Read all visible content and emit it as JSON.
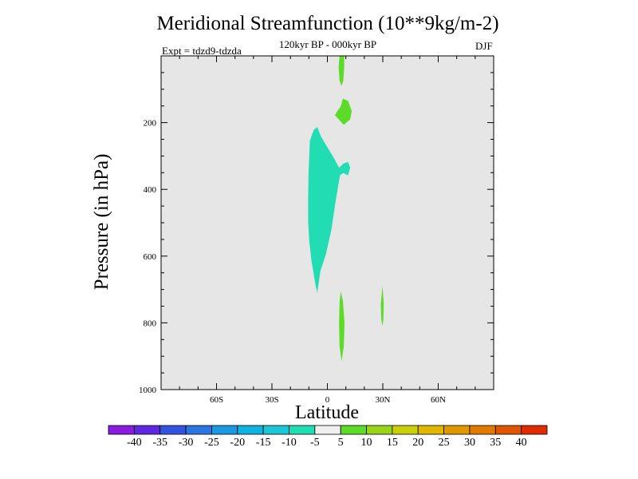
{
  "chart_data": {
    "type": "contour",
    "title": "Meridional Streamfunction (10**9kg/m-2)",
    "subtitle": "120kyr BP - 000kyr BP",
    "left_note": "Expt = tdzd9-tdzda",
    "right_note": "DJF",
    "xlabel": "Latitude",
    "ylabel": "Pressure (in hPa)",
    "xlim": [
      -90,
      90
    ],
    "ylim": [
      0,
      1000
    ],
    "x_ticks": [
      {
        "value": -60,
        "label": "60S"
      },
      {
        "value": -30,
        "label": "30S"
      },
      {
        "value": 0,
        "label": "0"
      },
      {
        "value": 30,
        "label": "30N"
      },
      {
        "value": 60,
        "label": "60N"
      }
    ],
    "y_ticks": [
      {
        "value": 200,
        "label": "200"
      },
      {
        "value": 400,
        "label": "400"
      },
      {
        "value": 600,
        "label": "600"
      },
      {
        "value": 800,
        "label": "800"
      },
      {
        "value": 1000,
        "label": "1000"
      }
    ],
    "background_color": "#e6e6e6",
    "colorbar": {
      "colors": [
        "#8a1ce0",
        "#5e28e0",
        "#3454e0",
        "#2c74e0",
        "#1c98e0",
        "#12b2e0",
        "#1cc6d6",
        "#22dcb4",
        "#f0f0f0",
        "#5cdc28",
        "#98d41a",
        "#c8d00a",
        "#e0b800",
        "#e09800",
        "#e07a00",
        "#e05600",
        "#e02a00"
      ],
      "labels": [
        "-40",
        "-35",
        "-30",
        "-25",
        "-20",
        "-15",
        "-10",
        "-5",
        "5",
        "10",
        "15",
        "20",
        "25",
        "30",
        "35",
        "40"
      ]
    },
    "regions": [
      {
        "name": "negative-cell-tropics",
        "range": "-10 to -5",
        "color": "#22dcb4",
        "points": [
          [
            -5.5,
            213
          ],
          [
            -3.4,
            242
          ],
          [
            3.4,
            305
          ],
          [
            6.3,
            335
          ],
          [
            8.9,
            322
          ],
          [
            11.2,
            318
          ],
          [
            12.4,
            335
          ],
          [
            11.2,
            358
          ],
          [
            8.6,
            351
          ],
          [
            6.8,
            358
          ],
          [
            4.6,
            430
          ],
          [
            2.2,
            520
          ],
          [
            -0.8,
            595
          ],
          [
            -3.8,
            645
          ],
          [
            -5.5,
            710
          ],
          [
            -6.3,
            690
          ],
          [
            -8.6,
            615
          ],
          [
            -9.8,
            555
          ],
          [
            -10.4,
            500
          ],
          [
            -10.4,
            430
          ],
          [
            -10.2,
            350
          ],
          [
            -9.5,
            255
          ],
          [
            -7.4,
            222
          ]
        ]
      },
      {
        "name": "positive-cell-top",
        "range": "5 to 10",
        "color": "#5cdc28",
        "points": [
          [
            6.6,
            0
          ],
          [
            9.1,
            0
          ],
          [
            9.1,
            35
          ],
          [
            8.6,
            75
          ],
          [
            7.7,
            90
          ],
          [
            6.6,
            75
          ],
          [
            6.1,
            35
          ]
        ]
      },
      {
        "name": "positive-cell-upper",
        "range": "5 to 10",
        "color": "#5cdc28",
        "points": [
          [
            8.4,
            128
          ],
          [
            11.2,
            135
          ],
          [
            13.2,
            165
          ],
          [
            12.4,
            190
          ],
          [
            8.9,
            207
          ],
          [
            7.2,
            197
          ],
          [
            4.1,
            178
          ],
          [
            5.4,
            165
          ],
          [
            7.2,
            152
          ]
        ]
      },
      {
        "name": "positive-cell-lower",
        "range": "5 to 10",
        "color": "#5cdc28",
        "points": [
          [
            7.2,
            705
          ],
          [
            8.4,
            735
          ],
          [
            9.3,
            800
          ],
          [
            8.9,
            870
          ],
          [
            7.7,
            915
          ],
          [
            6.6,
            870
          ],
          [
            6.3,
            800
          ],
          [
            6.6,
            740
          ]
        ]
      },
      {
        "name": "positive-cell-30n",
        "range": "5 to 10",
        "color": "#5cdc28",
        "points": [
          [
            29.8,
            690
          ],
          [
            30.5,
            740
          ],
          [
            30.3,
            790
          ],
          [
            29.8,
            810
          ],
          [
            29.2,
            790
          ],
          [
            28.9,
            745
          ]
        ]
      }
    ]
  }
}
